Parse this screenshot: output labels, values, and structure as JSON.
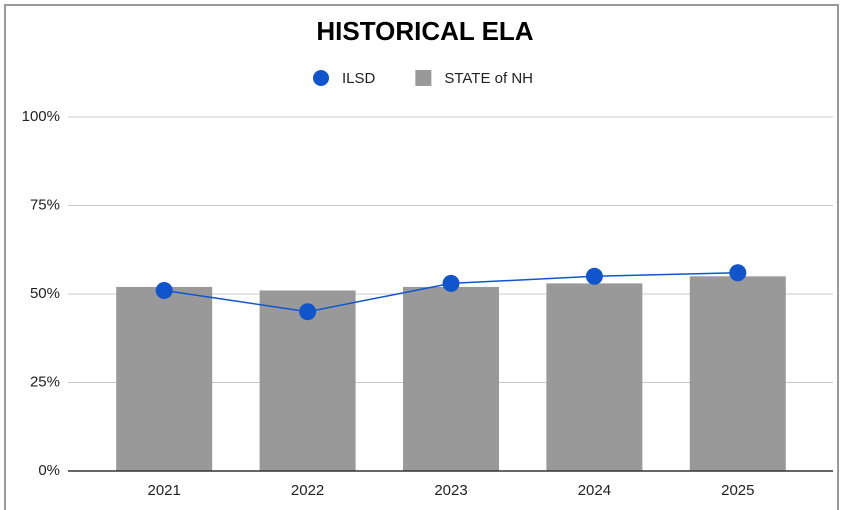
{
  "chart_data": {
    "type": "bar",
    "title": "HISTORICAL ELA",
    "categories": [
      "2021",
      "2022",
      "2023",
      "2024",
      "2025"
    ],
    "series": [
      {
        "name": "ILSD",
        "type": "line",
        "color": "#1155cc",
        "values": [
          51,
          45,
          53,
          55,
          56
        ]
      },
      {
        "name": "STATE of NH",
        "type": "bar",
        "color": "#999999",
        "values": [
          52,
          51,
          52,
          53,
          55
        ]
      }
    ],
    "ylim": [
      0,
      100
    ],
    "yticks": [
      {
        "value": 0,
        "label": "0%"
      },
      {
        "value": 25,
        "label": "25%"
      },
      {
        "value": 50,
        "label": "50%"
      },
      {
        "value": 75,
        "label": "75%"
      },
      {
        "value": 100,
        "label": "100%"
      }
    ],
    "grid": true,
    "legend": "top"
  }
}
